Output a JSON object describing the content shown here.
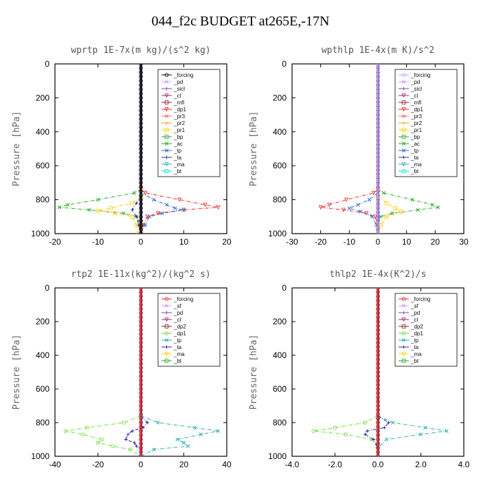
{
  "title": "044_f2c  BUDGET at265E,-17N",
  "chart_data": [
    {
      "type": "line",
      "title": "wprtp  1E-7x(m kg)/(s^2 kg)",
      "ylabel": "Pressure [hPa]",
      "xlim": [
        -20,
        20
      ],
      "ylim": [
        1000,
        0
      ],
      "xticks": [
        "-20",
        "-10",
        "0",
        "10",
        "20"
      ],
      "yticks": [
        "0",
        "200",
        "400",
        "600",
        "800",
        "1000"
      ],
      "legend": [
        "_forcing",
        "_pd",
        "_sicl",
        "_cl",
        "_mfl",
        "_dp1",
        "_pr3",
        "_pr2",
        "_pr1",
        "_bp",
        "_ac",
        "_tp",
        "_ta",
        "_ma",
        "_bt"
      ],
      "series": [
        {
          "name": "_forcing",
          "color": "#000000",
          "marker": "circle",
          "y": [
            0,
            100,
            200,
            300,
            400,
            500,
            600,
            700,
            800,
            900,
            1000
          ],
          "x": [
            0,
            0,
            0,
            0,
            0,
            0,
            0,
            0,
            0,
            0,
            0
          ]
        },
        {
          "name": "_ac",
          "color": "#22aa22",
          "marker": "x",
          "y": [
            740,
            760,
            800,
            830,
            845,
            860,
            880,
            900,
            950,
            1000
          ],
          "x": [
            0,
            -1.5,
            -10,
            -17,
            -19,
            -12,
            -4,
            -1,
            0,
            0
          ]
        },
        {
          "name": "_dp1",
          "color": "#ee2222",
          "marker": "triangle-down",
          "y": [
            740,
            760,
            800,
            830,
            845,
            860,
            880,
            900,
            950,
            1000
          ],
          "x": [
            0,
            1,
            9,
            15,
            18,
            10,
            4,
            1.5,
            0.5,
            0
          ]
        },
        {
          "name": "_tp",
          "color": "#2266cc",
          "marker": "x",
          "y": [
            760,
            800,
            830,
            850,
            860,
            880,
            900,
            950,
            1000
          ],
          "x": [
            0,
            3,
            6,
            8,
            10,
            5,
            2,
            1,
            0
          ]
        },
        {
          "name": "_pr1",
          "color": "#ffcc00",
          "marker": "square",
          "y": [
            780,
            820,
            850,
            865,
            880,
            900,
            950,
            1000
          ],
          "x": [
            0,
            -2,
            -7,
            -10,
            -6,
            -2,
            -1,
            -0.5
          ]
        },
        {
          "name": "_ta",
          "color": "#2222aa",
          "marker": "plus",
          "y": [
            780,
            820,
            860,
            900,
            950,
            1000
          ],
          "x": [
            0,
            -1,
            -2,
            -1,
            -0.5,
            0
          ]
        }
      ]
    },
    {
      "type": "line",
      "title": "wpthlp  1E-4x(m K)/s^2",
      "ylabel": "Pressure [hPa]",
      "xlim": [
        -30,
        30
      ],
      "ylim": [
        1000,
        0
      ],
      "xticks": [
        "-30",
        "-20",
        "-10",
        "0",
        "10",
        "20",
        "30"
      ],
      "yticks": [
        "0",
        "200",
        "400",
        "600",
        "800",
        "1000"
      ],
      "legend": [
        "_forcing",
        "_pd",
        "_sicl",
        "_cl",
        "_mfl",
        "_dp1",
        "_pr3",
        "_pr2",
        "_pr1",
        "_bp",
        "_ac",
        "_tp",
        "_ta",
        "_ma",
        "_bt"
      ],
      "series": [
        {
          "name": "_forcing",
          "color": "#cc99ff",
          "marker": "circle",
          "y": [
            0,
            100,
            200,
            300,
            400,
            500,
            600,
            700,
            800,
            900,
            1000
          ],
          "x": [
            0,
            0,
            0,
            0,
            0,
            0,
            0,
            0,
            0,
            0,
            0
          ]
        },
        {
          "name": "_ac",
          "color": "#22aa22",
          "marker": "x",
          "y": [
            740,
            760,
            800,
            830,
            845,
            860,
            880,
            900,
            950,
            1000
          ],
          "x": [
            0,
            2,
            12,
            19,
            21,
            14,
            5,
            1,
            0,
            0
          ]
        },
        {
          "name": "_dp1",
          "color": "#ee2222",
          "marker": "triangle-down",
          "y": [
            740,
            760,
            800,
            830,
            845,
            860,
            880,
            900,
            950,
            1000
          ],
          "x": [
            0,
            -1.5,
            -11,
            -17,
            -20,
            -12,
            -4,
            -1,
            0,
            0
          ]
        },
        {
          "name": "_tp",
          "color": "#2266cc",
          "marker": "x",
          "y": [
            760,
            800,
            830,
            850,
            870,
            900,
            950,
            1000
          ],
          "x": [
            0,
            -3,
            -7,
            -10,
            -6,
            -2,
            -0.5,
            0
          ]
        },
        {
          "name": "_pr1",
          "color": "#ffcc00",
          "marker": "square",
          "y": [
            780,
            820,
            850,
            870,
            900,
            950,
            1000
          ],
          "x": [
            0,
            3,
            6,
            8,
            3,
            1,
            0
          ]
        }
      ]
    },
    {
      "type": "line",
      "title": "rtp2  1E-11x(kg^2)/(kg^2 s)",
      "ylabel": "Pressure [hPa]",
      "xlim": [
        -40,
        40
      ],
      "ylim": [
        1000,
        0
      ],
      "xticks": [
        "-40",
        "-20",
        "0",
        "20",
        "40"
      ],
      "yticks": [
        "0",
        "200",
        "400",
        "600",
        "800",
        "1000"
      ],
      "legend": [
        "_forcing",
        "_sf",
        "_pd",
        "_cl",
        "_dp2",
        "_dp1",
        "_tp",
        "_ta",
        "_ma",
        "_bt"
      ],
      "series": [
        {
          "name": "_forcing",
          "color": "#ee2222",
          "marker": "circle",
          "y": [
            0,
            100,
            200,
            300,
            400,
            500,
            600,
            700,
            800,
            900,
            1000
          ],
          "x": [
            0,
            0,
            0,
            0,
            0,
            0,
            0,
            0,
            0,
            0,
            0
          ]
        },
        {
          "name": "_dp1",
          "color": "#66dd33",
          "marker": "circle",
          "y": [
            760,
            800,
            830,
            850,
            870,
            900,
            920,
            940,
            960,
            1000
          ],
          "x": [
            0,
            -8,
            -25,
            -35,
            -27,
            -18,
            -20,
            -13,
            -5,
            0
          ]
        },
        {
          "name": "_tp",
          "color": "#22aaaa",
          "marker": "x",
          "y": [
            760,
            800,
            830,
            850,
            870,
            900,
            920,
            940,
            960,
            1000
          ],
          "x": [
            0,
            8,
            25,
            36,
            28,
            17,
            20,
            22,
            6,
            0
          ]
        },
        {
          "name": "_ta",
          "color": "#2222aa",
          "marker": "plus",
          "y": [
            760,
            800,
            830,
            850,
            870,
            900,
            920,
            940,
            960,
            1000
          ],
          "x": [
            0,
            3,
            1,
            -4,
            -6,
            -7,
            -3,
            -2,
            0,
            0
          ]
        }
      ]
    },
    {
      "type": "line",
      "title": "thlp2  1E-4x(K^2)/s",
      "ylabel": "Pressure [hPa]",
      "xlim": [
        -4,
        4
      ],
      "ylim": [
        1000,
        0
      ],
      "xticks": [
        "-4.0",
        "-2.0",
        "0.0",
        "2.0",
        "4.0"
      ],
      "yticks": [
        "0",
        "200",
        "400",
        "600",
        "800",
        "1000"
      ],
      "legend": [
        "_forcing",
        "_sf",
        "_pd",
        "_cl",
        "_dp2",
        "_dp1",
        "_tp",
        "_ta",
        "_ma",
        "_bt"
      ],
      "series": [
        {
          "name": "_forcing",
          "color": "#ee2222",
          "marker": "circle",
          "y": [
            0,
            100,
            200,
            300,
            400,
            500,
            600,
            700,
            800,
            900,
            1000
          ],
          "x": [
            0,
            0,
            0,
            0,
            0,
            0,
            0,
            0,
            0,
            0,
            0
          ]
        },
        {
          "name": "_dp1",
          "color": "#66dd33",
          "marker": "circle",
          "y": [
            760,
            800,
            830,
            850,
            870,
            900,
            950,
            1000
          ],
          "x": [
            0,
            -0.6,
            -2,
            -3,
            -1.5,
            -0.3,
            0,
            0
          ]
        },
        {
          "name": "_tp",
          "color": "#22aaaa",
          "marker": "x",
          "y": [
            760,
            800,
            830,
            850,
            870,
            900,
            950,
            1000
          ],
          "x": [
            0,
            0.7,
            2.2,
            3.2,
            2,
            0.4,
            0,
            0
          ]
        },
        {
          "name": "_ta",
          "color": "#2222aa",
          "marker": "plus",
          "y": [
            760,
            800,
            830,
            850,
            870,
            900,
            950,
            1000
          ],
          "x": [
            0,
            0.5,
            0.3,
            -0.5,
            -0.6,
            -0.2,
            0,
            0
          ]
        }
      ]
    }
  ]
}
